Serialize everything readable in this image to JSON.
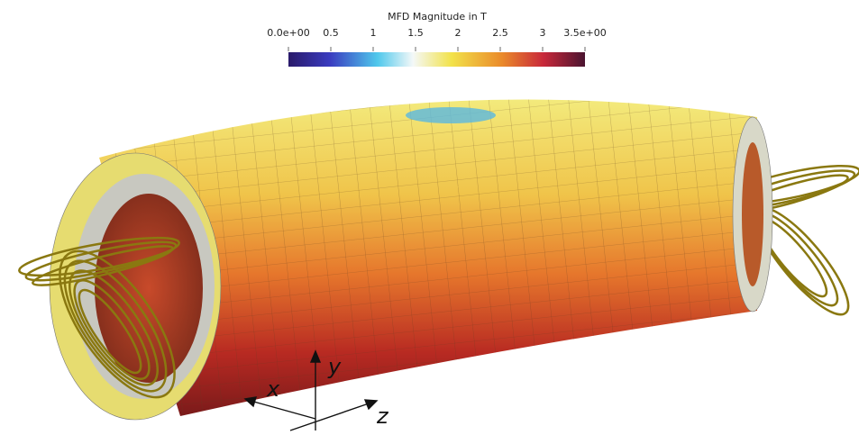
{
  "colorbar": {
    "title": "MFD Magnitude in T",
    "range": [
      0,
      3.5
    ],
    "ticks": [
      {
        "value": 0,
        "label": "0.0e+00"
      },
      0.5,
      1,
      1.5,
      2,
      2.5,
      3,
      {
        "value": 3.5,
        "label": "3.5e+00"
      }
    ]
  },
  "axes": {
    "x": "x",
    "y": "y",
    "z": "z"
  }
}
